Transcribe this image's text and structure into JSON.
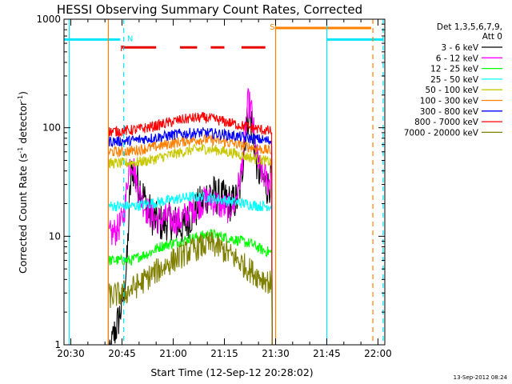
{
  "chart_data": {
    "type": "line",
    "title": "HESSI Observing Summary Count Rates, Corrected",
    "xlabel": "Start Time (12-Sep-12 20:28:02)",
    "ylabel": "Corrected Count Rate (s⁻¹ detector⁻¹)",
    "ylabel_parts": {
      "base": "Corrected Count Rate (s",
      "sup1": "-1",
      "mid": " detector",
      "sup2": "-1",
      "end": ")"
    },
    "scale": "log",
    "xlim_min": [
      28,
      122
    ],
    "ylim": [
      1,
      1000
    ],
    "x_ticks": [
      {
        "min": 30,
        "label": "20:30"
      },
      {
        "min": 45,
        "label": "20:45"
      },
      {
        "min": 60,
        "label": "21:00"
      },
      {
        "min": 75,
        "label": "21:15"
      },
      {
        "min": 90,
        "label": "21:30"
      },
      {
        "min": 105,
        "label": "21:45"
      },
      {
        "min": 120,
        "label": "22:00"
      }
    ],
    "y_ticks": [
      {
        "value": 1,
        "label": "1"
      },
      {
        "value": 10,
        "label": "10"
      },
      {
        "value": 100,
        "label": "100"
      },
      {
        "value": 1000,
        "label": "1000"
      }
    ],
    "legend_header": [
      "Det 1,3,5,6,7,9,",
      "Att 0"
    ],
    "legend_position": "right",
    "data_start_min": 41,
    "data_end_min": 89.5,
    "series": [
      {
        "name": "3 - 6 keV",
        "color": "#000000",
        "points": [
          [
            41,
            0.6
          ],
          [
            42.5,
            1.2
          ],
          [
            43.5,
            1.5
          ],
          [
            44.5,
            2.0
          ],
          [
            45.5,
            3.0
          ],
          [
            46.5,
            6
          ],
          [
            47,
            15
          ],
          [
            47.5,
            30
          ],
          [
            48,
            45
          ],
          [
            49,
            33
          ],
          [
            50,
            30
          ],
          [
            51,
            25
          ],
          [
            52,
            20
          ],
          [
            53,
            17
          ],
          [
            54,
            15
          ],
          [
            55,
            14
          ],
          [
            57,
            13
          ],
          [
            59,
            14
          ],
          [
            61,
            13
          ],
          [
            63,
            12
          ],
          [
            65,
            15
          ],
          [
            67,
            18
          ],
          [
            69,
            22
          ],
          [
            71,
            26
          ],
          [
            73,
            23
          ],
          [
            75,
            22
          ],
          [
            77,
            20
          ],
          [
            79,
            22
          ],
          [
            80,
            35
          ],
          [
            81,
            80
          ],
          [
            82,
            130
          ],
          [
            83,
            110
          ],
          [
            84,
            60
          ],
          [
            85,
            40
          ],
          [
            86,
            35
          ],
          [
            87,
            30
          ],
          [
            88,
            28
          ],
          [
            89,
            40
          ]
        ]
      },
      {
        "name": "6 - 12 keV",
        "color": "#ff00ff",
        "points": [
          [
            41,
            10
          ],
          [
            43,
            11
          ],
          [
            44,
            12
          ],
          [
            45,
            14
          ],
          [
            46,
            20
          ],
          [
            47,
            45
          ],
          [
            48,
            50
          ],
          [
            49,
            35
          ],
          [
            50,
            25
          ],
          [
            52,
            18
          ],
          [
            54,
            15
          ],
          [
            56,
            14
          ],
          [
            58,
            15
          ],
          [
            60,
            14
          ],
          [
            62,
            14
          ],
          [
            64,
            16
          ],
          [
            66,
            18
          ],
          [
            68,
            20
          ],
          [
            70,
            22
          ],
          [
            72,
            21
          ],
          [
            74,
            19
          ],
          [
            76,
            18
          ],
          [
            78,
            20
          ],
          [
            80,
            40
          ],
          [
            81,
            90
          ],
          [
            82,
            175
          ],
          [
            83,
            140
          ],
          [
            84,
            70
          ],
          [
            85,
            45
          ],
          [
            86,
            38
          ],
          [
            87,
            35
          ],
          [
            88,
            30
          ],
          [
            89,
            45
          ]
        ]
      },
      {
        "name": "12 - 25 keV",
        "color": "#00ff00",
        "points": [
          [
            41,
            6
          ],
          [
            44,
            6
          ],
          [
            46,
            6
          ],
          [
            48,
            6
          ],
          [
            50,
            6.5
          ],
          [
            53,
            7
          ],
          [
            56,
            8
          ],
          [
            59,
            8.5
          ],
          [
            62,
            9
          ],
          [
            65,
            9.5
          ],
          [
            68,
            10
          ],
          [
            71,
            10.5
          ],
          [
            74,
            10
          ],
          [
            77,
            9.5
          ],
          [
            80,
            9
          ],
          [
            83,
            8.5
          ],
          [
            86,
            7.5
          ],
          [
            89,
            7
          ]
        ]
      },
      {
        "name": "25 - 50 keV",
        "color": "#00ffff",
        "points": [
          [
            41,
            19
          ],
          [
            45,
            19
          ],
          [
            49,
            19
          ],
          [
            53,
            20
          ],
          [
            57,
            21
          ],
          [
            61,
            22
          ],
          [
            65,
            23
          ],
          [
            69,
            23
          ],
          [
            73,
            22
          ],
          [
            77,
            21
          ],
          [
            81,
            20
          ],
          [
            85,
            19
          ],
          [
            89,
            19
          ]
        ]
      },
      {
        "name": "50 - 100 keV",
        "color": "#c8c800",
        "points": [
          [
            41,
            47
          ],
          [
            45,
            47
          ],
          [
            49,
            48
          ],
          [
            53,
            50
          ],
          [
            57,
            54
          ],
          [
            61,
            58
          ],
          [
            65,
            62
          ],
          [
            69,
            64
          ],
          [
            73,
            62
          ],
          [
            77,
            59
          ],
          [
            81,
            55
          ],
          [
            85,
            51
          ],
          [
            89,
            48
          ]
        ]
      },
      {
        "name": "100 - 300 keV",
        "color": "#ff8000",
        "points": [
          [
            41,
            60
          ],
          [
            45,
            60
          ],
          [
            49,
            62
          ],
          [
            53,
            65
          ],
          [
            57,
            69
          ],
          [
            61,
            73
          ],
          [
            65,
            77
          ],
          [
            69,
            78
          ],
          [
            73,
            76
          ],
          [
            77,
            72
          ],
          [
            81,
            68
          ],
          [
            85,
            64
          ],
          [
            89,
            61
          ]
        ]
      },
      {
        "name": "300 - 800 keV",
        "color": "#0000ff",
        "points": [
          [
            41,
            75
          ],
          [
            45,
            75
          ],
          [
            49,
            77
          ],
          [
            53,
            80
          ],
          [
            57,
            83
          ],
          [
            61,
            87
          ],
          [
            65,
            89
          ],
          [
            69,
            90
          ],
          [
            73,
            88
          ],
          [
            77,
            85
          ],
          [
            81,
            81
          ],
          [
            85,
            78
          ],
          [
            89,
            75
          ]
        ]
      },
      {
        "name": "800 - 7000 keV",
        "color": "#ff0000",
        "points": [
          [
            41,
            92
          ],
          [
            45,
            93
          ],
          [
            49,
            96
          ],
          [
            53,
            101
          ],
          [
            57,
            108
          ],
          [
            61,
            116
          ],
          [
            65,
            122
          ],
          [
            69,
            124
          ],
          [
            73,
            118
          ],
          [
            77,
            110
          ],
          [
            81,
            103
          ],
          [
            85,
            97
          ],
          [
            89,
            92
          ]
        ]
      },
      {
        "name": "7000 - 20000 keV",
        "color": "#808000",
        "points": [
          [
            41,
            2.8
          ],
          [
            44,
            2.9
          ],
          [
            46,
            3.0
          ],
          [
            48,
            3.3
          ],
          [
            51,
            3.8
          ],
          [
            54,
            4.5
          ],
          [
            57,
            5.2
          ],
          [
            60,
            6
          ],
          [
            63,
            6.8
          ],
          [
            66,
            7.6
          ],
          [
            69,
            8.2
          ],
          [
            71,
            8.5
          ],
          [
            73,
            8
          ],
          [
            76,
            7
          ],
          [
            79,
            6
          ],
          [
            82,
            5
          ],
          [
            85,
            4.3
          ],
          [
            87,
            4
          ],
          [
            89,
            3.6
          ]
        ]
      }
    ],
    "flags": {
      "night_level": 650,
      "night_segments": [
        [
          28,
          44.5
        ],
        [
          105,
          121.5
        ]
      ],
      "night_label": "N",
      "flare_level": 550,
      "flare_segments": [
        [
          45,
          55
        ],
        [
          62,
          67
        ],
        [
          71,
          75
        ],
        [
          80,
          87
        ]
      ],
      "flare_label": "F",
      "saa_level": 830,
      "saa_segment": [
        90,
        118
      ],
      "saa_label": "S",
      "orange_solid_verticals": [
        41,
        90
      ],
      "orange_dashed_vertical": 118.5,
      "cyan_solid_verticals": [
        29.5,
        105
      ],
      "cyan_dashed_verticals": [
        45.5,
        121.5
      ],
      "red_label_pos": 44,
      "cyan_label_pos": 46.5,
      "orange_label_pos": 89
    },
    "footer_date": "13-Sep-2012 08:24"
  }
}
